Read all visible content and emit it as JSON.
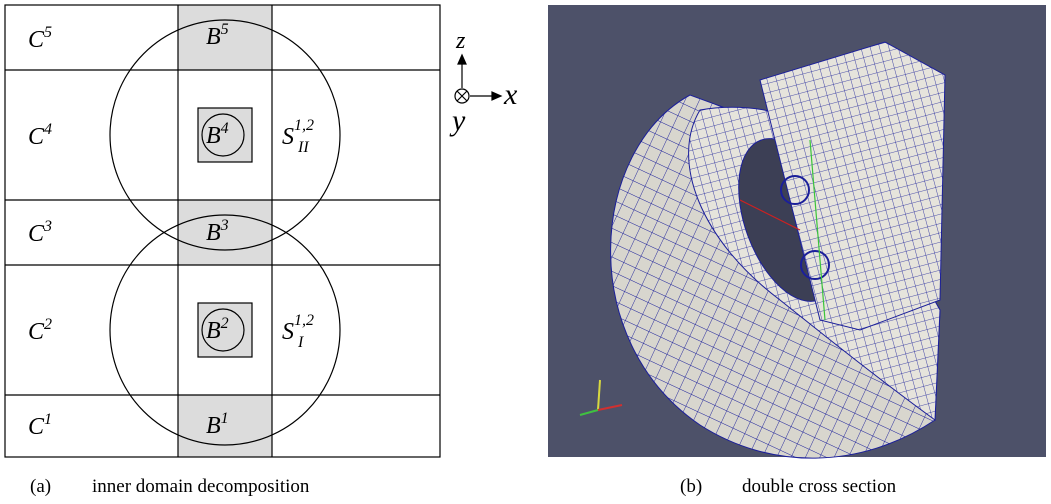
{
  "figure_a": {
    "row_labels": [
      {
        "base": "C",
        "sup": "5"
      },
      {
        "base": "C",
        "sup": "4"
      },
      {
        "base": "C",
        "sup": "3"
      },
      {
        "base": "C",
        "sup": "2"
      },
      {
        "base": "C",
        "sup": "1"
      }
    ],
    "block_labels": [
      {
        "base": "B",
        "sup": "5"
      },
      {
        "base": "B",
        "sup": "4"
      },
      {
        "base": "B",
        "sup": "3"
      },
      {
        "base": "B",
        "sup": "2"
      },
      {
        "base": "B",
        "sup": "1"
      }
    ],
    "sphere_labels": [
      {
        "base": "S",
        "sup": "1,2",
        "sub": "II"
      },
      {
        "base": "S",
        "sup": "1,2",
        "sub": "I"
      }
    ],
    "axes": {
      "z": "z",
      "x": "x",
      "y": "y"
    },
    "caption": {
      "tag": "(a)",
      "text": "inner domain decomposition"
    }
  },
  "figure_b": {
    "caption": {
      "tag": "(b)",
      "text": "double cross section"
    }
  }
}
